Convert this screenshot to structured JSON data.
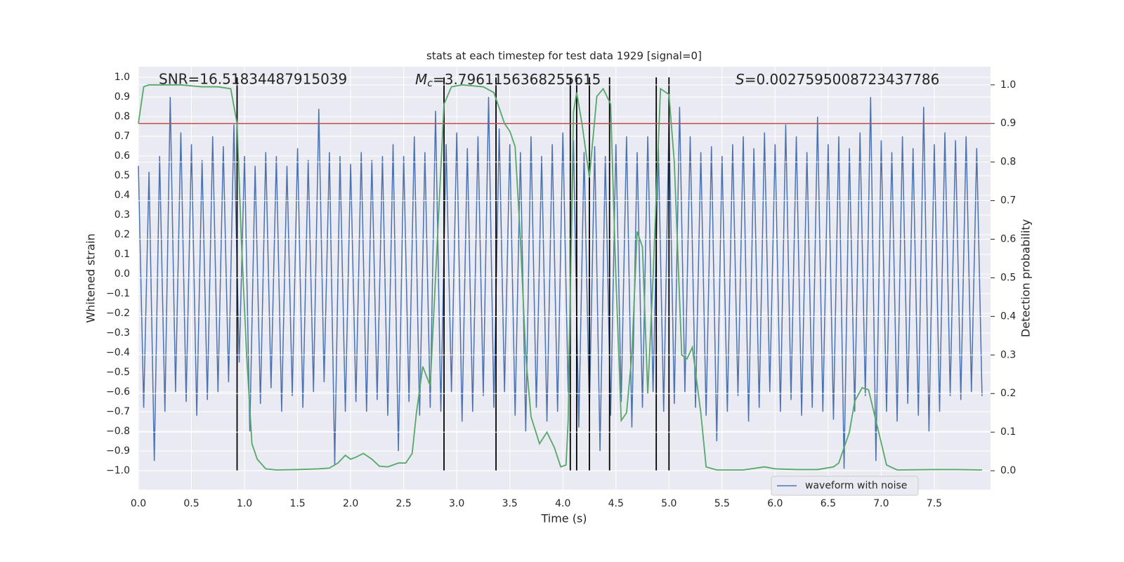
{
  "chart_data": {
    "type": "line",
    "title": "stats at each timestep for test data 1929 [signal=0]",
    "xlabel": "Time (s)",
    "ylabel": "Whitened strain",
    "y2label": "Detection probability",
    "annotations": [
      {
        "text": "SNR=16.51834487915039"
      },
      {
        "symbol": "M",
        "subscript": "c",
        "text": "=3.7961156368255615"
      },
      {
        "symbol": "S",
        "text": "=0.0027595008723437786"
      }
    ],
    "xlim": [
      0,
      8.03
    ],
    "ylim": [
      -1.096,
      1.054
    ],
    "y2lim": [
      -0.049,
      1.047
    ],
    "xticks": [
      {
        "value": 0,
        "label": "0.0"
      },
      {
        "value": 0.5,
        "label": "0.5"
      },
      {
        "value": 1,
        "label": "1.0"
      },
      {
        "value": 1.5,
        "label": "1.5"
      },
      {
        "value": 2,
        "label": "2.0"
      },
      {
        "value": 2.5,
        "label": "2.5"
      },
      {
        "value": 3,
        "label": "3.0"
      },
      {
        "value": 3.5,
        "label": "3.5"
      },
      {
        "value": 4,
        "label": "4.0"
      },
      {
        "value": 4.5,
        "label": "4.5"
      },
      {
        "value": 5,
        "label": "5.0"
      },
      {
        "value": 5.5,
        "label": "5.5"
      },
      {
        "value": 6,
        "label": "6.0"
      },
      {
        "value": 6.5,
        "label": "6.5"
      },
      {
        "value": 7,
        "label": "7.0"
      },
      {
        "value": 7.5,
        "label": "7.5"
      }
    ],
    "yticks": [
      {
        "value": -1,
        "label": "−1.0"
      },
      {
        "value": -0.9,
        "label": "−0.9"
      },
      {
        "value": -0.8,
        "label": "−0.8"
      },
      {
        "value": -0.7,
        "label": "−0.7"
      },
      {
        "value": -0.6,
        "label": "−0.6"
      },
      {
        "value": -0.5,
        "label": "−0.5"
      },
      {
        "value": -0.4,
        "label": "−0.4"
      },
      {
        "value": -0.3,
        "label": "−0.3"
      },
      {
        "value": -0.2,
        "label": "−0.2"
      },
      {
        "value": -0.1,
        "label": "−0.1"
      },
      {
        "value": 0,
        "label": "0.0"
      },
      {
        "value": 0.1,
        "label": "0.1"
      },
      {
        "value": 0.2,
        "label": "0.2"
      },
      {
        "value": 0.3,
        "label": "0.3"
      },
      {
        "value": 0.4,
        "label": "0.4"
      },
      {
        "value": 0.5,
        "label": "0.5"
      },
      {
        "value": 0.6,
        "label": "0.6"
      },
      {
        "value": 0.7,
        "label": "0.7"
      },
      {
        "value": 0.8,
        "label": "0.8"
      },
      {
        "value": 0.9,
        "label": "0.9"
      },
      {
        "value": 1,
        "label": "1.0"
      }
    ],
    "y2ticks": [
      {
        "value": 0,
        "label": "0.0"
      },
      {
        "value": 0.1,
        "label": "0.1"
      },
      {
        "value": 0.2,
        "label": "0.2"
      },
      {
        "value": 0.3,
        "label": "0.3"
      },
      {
        "value": 0.4,
        "label": "0.4"
      },
      {
        "value": 0.5,
        "label": "0.5"
      },
      {
        "value": 0.6,
        "label": "0.6"
      },
      {
        "value": 0.7,
        "label": "0.7"
      },
      {
        "value": 0.8,
        "label": "0.8"
      },
      {
        "value": 0.9,
        "label": "0.9"
      },
      {
        "value": 1,
        "label": "1.0"
      }
    ],
    "grid": true,
    "legend": "lower right",
    "series": [
      {
        "name": "waveform with noise",
        "color": "#4c72b0",
        "x": [
          0,
          0.05,
          0.1,
          0.15,
          0.2,
          0.25,
          0.3,
          0.35,
          0.4,
          0.45,
          0.5,
          0.55,
          0.6,
          0.65,
          0.7,
          0.75,
          0.8,
          0.85,
          0.9,
          0.95,
          1,
          1.05,
          1.1,
          1.15,
          1.2,
          1.25,
          1.3,
          1.35,
          1.4,
          1.45,
          1.5,
          1.55,
          1.6,
          1.65,
          1.7,
          1.75,
          1.8,
          1.85,
          1.9,
          1.95,
          2,
          2.05,
          2.1,
          2.15,
          2.2,
          2.25,
          2.3,
          2.35,
          2.4,
          2.45,
          2.5,
          2.55,
          2.6,
          2.65,
          2.7,
          2.75,
          2.8,
          2.85,
          2.9,
          2.95,
          3,
          3.05,
          3.1,
          3.15,
          3.2,
          3.25,
          3.3,
          3.35,
          3.4,
          3.45,
          3.5,
          3.55,
          3.6,
          3.65,
          3.7,
          3.75,
          3.8,
          3.85,
          3.9,
          3.95,
          4,
          4.05,
          4.1,
          4.15,
          4.2,
          4.25,
          4.3,
          4.35,
          4.4,
          4.45,
          4.5,
          4.55,
          4.6,
          4.65,
          4.7,
          4.75,
          4.8,
          4.85,
          4.9,
          4.95,
          5,
          5.05,
          5.1,
          5.15,
          5.2,
          5.25,
          5.3,
          5.35,
          5.4,
          5.45,
          5.5,
          5.55,
          5.6,
          5.65,
          5.7,
          5.75,
          5.8,
          5.85,
          5.9,
          5.95,
          6,
          6.05,
          6.1,
          6.15,
          6.2,
          6.25,
          6.3,
          6.35,
          6.4,
          6.45,
          6.5,
          6.55,
          6.6,
          6.65,
          6.7,
          6.75,
          6.8,
          6.85,
          6.9,
          6.95,
          7,
          7.05,
          7.1,
          7.15,
          7.2,
          7.25,
          7.3,
          7.35,
          7.4,
          7.45,
          7.5,
          7.55,
          7.6,
          7.65,
          7.7,
          7.75,
          7.8,
          7.85,
          7.9,
          7.95
        ],
        "values": [
          0.55,
          -0.68,
          0.52,
          -0.95,
          0.6,
          -0.7,
          0.9,
          -0.6,
          0.72,
          -0.65,
          0.66,
          -0.72,
          0.58,
          -0.64,
          0.7,
          -0.6,
          0.65,
          -0.55,
          0.76,
          -0.45,
          0.6,
          -0.8,
          0.55,
          -0.66,
          0.62,
          -0.58,
          0.6,
          -0.7,
          0.55,
          -0.62,
          0.64,
          -0.68,
          0.58,
          -0.6,
          0.84,
          -0.55,
          0.62,
          -0.97,
          0.6,
          -0.7,
          0.56,
          -0.65,
          0.62,
          -0.7,
          0.58,
          -0.64,
          0.6,
          -0.72,
          0.66,
          -0.9,
          0.6,
          -0.65,
          0.7,
          -0.72,
          0.62,
          -0.68,
          0.83,
          -0.7,
          0.66,
          -0.6,
          0.72,
          -0.75,
          0.64,
          -0.7,
          0.7,
          -0.62,
          0.9,
          -0.68,
          0.74,
          -0.6,
          0.66,
          -0.72,
          0.62,
          -0.8,
          0.7,
          -0.68,
          0.6,
          -0.75,
          0.66,
          -0.7,
          0.72,
          -0.6,
          0.68,
          -0.78,
          0.62,
          -0.7,
          0.65,
          -0.9,
          0.6,
          -0.72,
          0.66,
          -0.65,
          0.7,
          -0.78,
          0.62,
          -0.68,
          0.7,
          -0.6,
          0.64,
          -0.7,
          0.78,
          -0.66,
          0.85,
          -0.6,
          0.7,
          -0.68,
          0.62,
          -0.72,
          0.65,
          -0.85,
          0.6,
          -0.7,
          0.66,
          -0.62,
          0.7,
          -0.75,
          0.64,
          -0.68,
          0.72,
          -0.6,
          0.66,
          -0.7,
          0.76,
          -0.64,
          0.7,
          -0.72,
          0.62,
          -0.68,
          0.8,
          -0.7,
          0.66,
          -0.74,
          0.7,
          -0.99,
          0.64,
          -0.7,
          0.72,
          -0.62,
          0.9,
          -0.95,
          0.68,
          -0.7,
          0.62,
          -0.75,
          0.7,
          -0.66,
          0.64,
          -0.72,
          0.85,
          -0.8,
          0.66,
          -0.7,
          0.72,
          -0.62,
          0.68,
          -0.64,
          0.7,
          -0.6,
          0.64,
          -0.62
        ]
      },
      {
        "color": "#55a868",
        "axis": "y2",
        "x": [
          0,
          0.05,
          0.1,
          0.2,
          0.4,
          0.6,
          0.75,
          0.87,
          0.93,
          0.97,
          1.02,
          1.07,
          1.12,
          1.2,
          1.3,
          1.5,
          1.7,
          1.8,
          1.88,
          1.95,
          2,
          2.05,
          2.12,
          2.2,
          2.27,
          2.35,
          2.45,
          2.52,
          2.58,
          2.62,
          2.68,
          2.75,
          2.8,
          2.88,
          2.95,
          3.05,
          3.25,
          3.35,
          3.45,
          3.5,
          3.55,
          3.6,
          3.65,
          3.7,
          3.78,
          3.85,
          3.92,
          3.98,
          4.03,
          4.05,
          4.1,
          4.13,
          4.18,
          4.25,
          4.32,
          4.38,
          4.45,
          4.5,
          4.55,
          4.6,
          4.65,
          4.7,
          4.75,
          4.8,
          4.85,
          4.92,
          5,
          5.05,
          5.12,
          5.17,
          5.22,
          5.3,
          5.35,
          5.45,
          5.7,
          5.9,
          6,
          6.2,
          6.4,
          6.55,
          6.6,
          6.65,
          6.7,
          6.75,
          6.82,
          6.88,
          6.95,
          7.05,
          7.15,
          7.5,
          7.7,
          7.95
        ],
        "values": [
          0.9,
          0.995,
          1,
          1,
          1,
          0.995,
          0.995,
          0.99,
          0.9,
          0.6,
          0.3,
          0.07,
          0.03,
          0.005,
          0.002,
          0.003,
          0.005,
          0.007,
          0.02,
          0.04,
          0.03,
          0.035,
          0.045,
          0.03,
          0.012,
          0.01,
          0.02,
          0.02,
          0.045,
          0.15,
          0.27,
          0.22,
          0.5,
          0.95,
          0.995,
          1,
          0.995,
          0.98,
          0.9,
          0.88,
          0.84,
          0.6,
          0.3,
          0.14,
          0.07,
          0.1,
          0.06,
          0.01,
          0.015,
          0.13,
          0.93,
          0.98,
          0.9,
          0.76,
          0.97,
          0.99,
          0.95,
          0.5,
          0.13,
          0.15,
          0.3,
          0.62,
          0.58,
          0.2,
          0.5,
          0.99,
          0.975,
          0.8,
          0.3,
          0.29,
          0.32,
          0.15,
          0.01,
          0.002,
          0.002,
          0.01,
          0.005,
          0.003,
          0.003,
          0.01,
          0.02,
          0.06,
          0.1,
          0.18,
          0.215,
          0.21,
          0.13,
          0.015,
          0.002,
          0.003,
          0.003,
          0.002
        ]
      }
    ],
    "vlines": {
      "color": "#000000",
      "x": [
        0.93,
        2.88,
        3.37,
        4.07,
        4.13,
        4.25,
        4.44,
        4.88,
        5.0
      ],
      "ymin": -1,
      "ymax": 1
    },
    "hline": {
      "color": "#c44e52",
      "axis": "y2",
      "value": 0.9
    }
  }
}
